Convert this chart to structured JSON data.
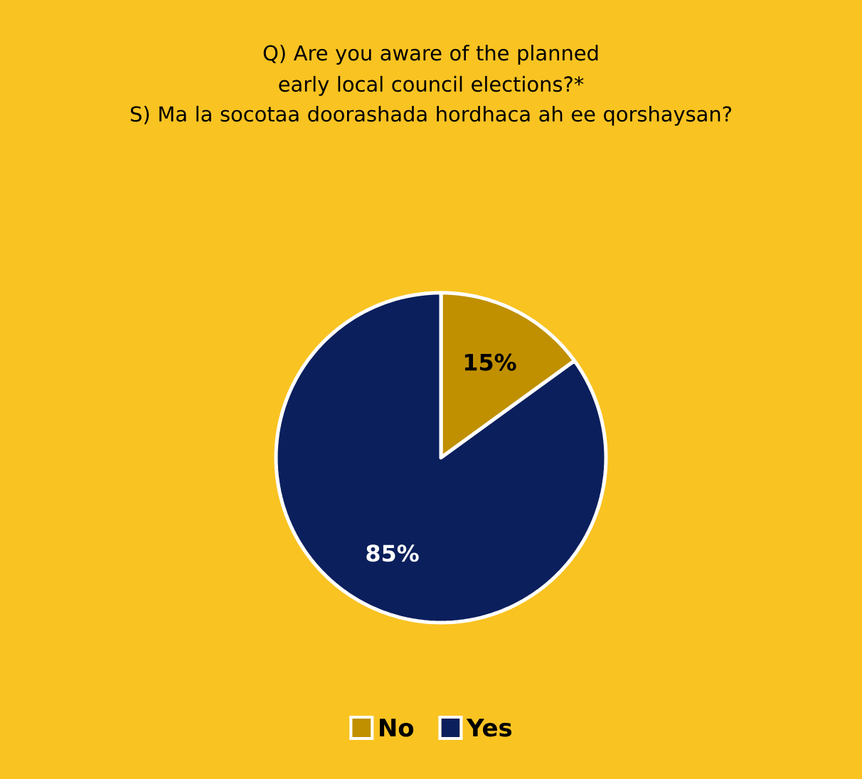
{
  "chart_data": {
    "type": "pie",
    "title": "Q) Are you aware of the planned early local council elections?*",
    "subtitle": "S) Ma la socotaa doorashada hordhaca ah ee qorshaysan?",
    "categories": [
      "No",
      "Yes"
    ],
    "values": [
      15,
      85
    ],
    "colors": [
      "#c09000",
      "#0a1f5c"
    ],
    "value_labels": [
      "15%",
      "85%"
    ],
    "legend": "bottom"
  }
}
